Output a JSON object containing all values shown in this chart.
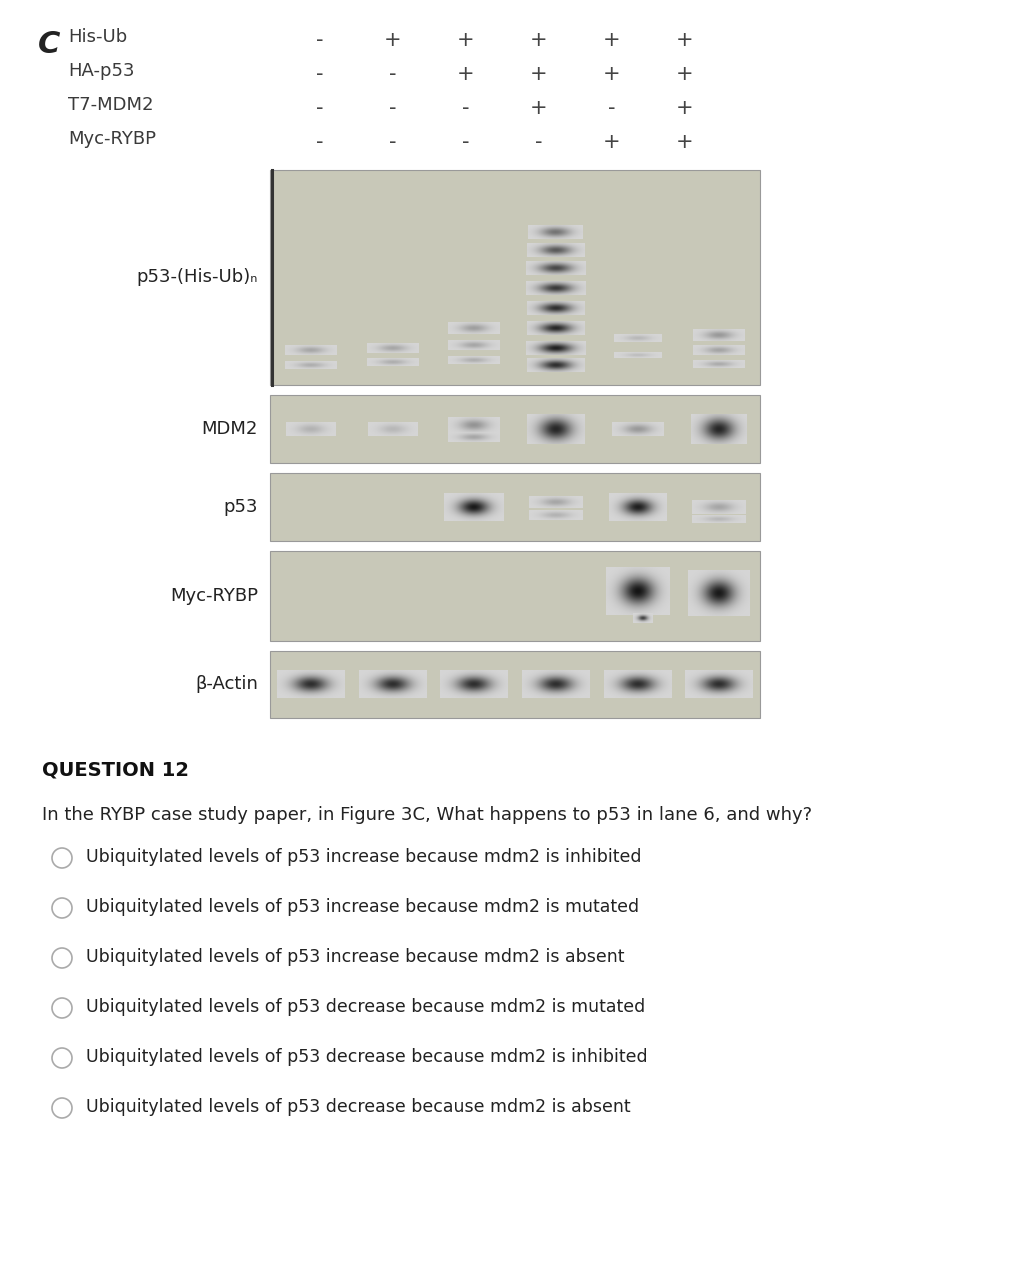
{
  "background_color": "#ffffff",
  "figure_label": "C",
  "row_labels": [
    "His-Ub",
    "HA-p53",
    "T7-MDM2",
    "Myc-RYBP"
  ],
  "lane_signs": [
    [
      "-",
      "+",
      "+",
      "+",
      "+",
      "+"
    ],
    [
      "-",
      "-",
      "+",
      "+",
      "+",
      "+"
    ],
    [
      "-",
      "-",
      "-",
      "+",
      "-",
      "+"
    ],
    [
      "-",
      "-",
      "-",
      "-",
      "+",
      "+"
    ]
  ],
  "blot_labels": [
    "p53-(His-Ub)ₙ",
    "MDM2",
    "p53",
    "Myc-RYBP",
    "β-Actin"
  ],
  "question_title": "QUESTION 12",
  "question_text": "In the RYBP case study paper, in Figure 3C, What happens to p53 in lane 6, and why?",
  "options": [
    "Ubiquitylated levels of p53 increase because mdm2 is inhibited",
    "Ubiquitylated levels of p53 increase because mdm2 is mutated",
    "Ubiquitylated levels of p53 increase because mdm2 is absent",
    "Ubiquitylated levels of p53 decrease because mdm2 is mutated",
    "Ubiquitylated levels of p53 decrease because mdm2 is inhibited",
    "Ubiquitylated levels of p53 decrease because mdm2 is absent"
  ],
  "header_text_color": "#3a3a3a",
  "sign_color": "#444444",
  "blot_bg_light": "#d8d8cc",
  "blot_bg_medium": "#c8c8b8",
  "blot_border_color": "#999999",
  "label_fontsize": 13,
  "sign_fontsize": 15,
  "question_fontsize": 13,
  "option_fontsize": 12.5
}
